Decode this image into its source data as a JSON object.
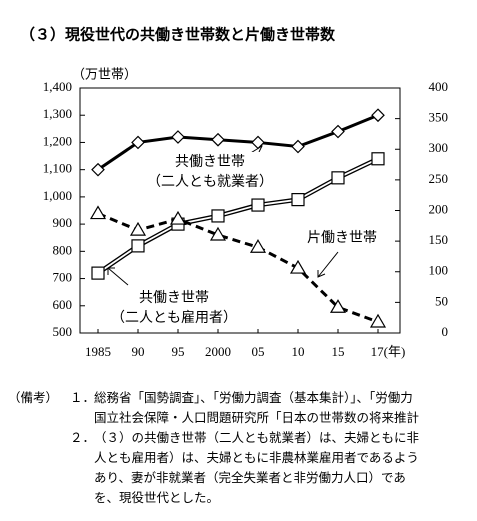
{
  "chart_data": {
    "type": "line",
    "title": "（３）現役世代の共働き世帯数と片働き世帯数",
    "y_label": "（万世帯）",
    "categories": [
      "1985",
      "90",
      "95",
      "2000",
      "05",
      "10",
      "15",
      "17(年)"
    ],
    "series": [
      {
        "name": "共働き世帯\n（二人とも就業者）",
        "color": "#000000",
        "marker": "diamond",
        "line_style": "solid",
        "values": [
          1100,
          1200,
          1220,
          1210,
          1200,
          1185,
          1240,
          1300
        ]
      },
      {
        "name": "共働き世帯\n（二人とも雇用者）",
        "color": "#000000",
        "marker": "square",
        "line_style": "double",
        "values": [
          720,
          820,
          900,
          930,
          970,
          990,
          1070,
          1140
        ]
      },
      {
        "name": "片働き世帯",
        "color": "#000000",
        "marker": "triangle",
        "line_style": "dashed",
        "axis": "y2",
        "values": [
          195,
          168,
          186,
          160,
          140,
          106,
          42,
          18
        ]
      }
    ],
    "ylim": [
      500,
      1400
    ],
    "yticks": [
      500,
      600,
      700,
      800,
      900,
      {
        "value": 1000,
        "label": "1,000"
      },
      {
        "value": 1100,
        "label": "1,100"
      },
      {
        "value": 1200,
        "label": "1,200"
      },
      {
        "value": 1300,
        "label": "1,300"
      },
      {
        "value": 1400,
        "label": "1,400"
      }
    ],
    "y2lim": [
      0,
      400
    ],
    "y2ticks": [
      0,
      50,
      100,
      150,
      200,
      250,
      300,
      350,
      400
    ],
    "grid": false
  },
  "notes": {
    "label": "（備考）",
    "items": [
      {
        "number": "１．",
        "lines": [
          "総務省「国勢調査」、「労働力調査（基本集計）」、「労働力",
          "国立社会保障・人口問題研究所「日本の世帯数の将来推計"
        ]
      },
      {
        "number": "２．",
        "lines": [
          "（３）の共働き世帯（二人とも就業者）は、夫婦ともに非",
          "人とも雇用者）は、夫婦ともに非農林業雇用者であるよう",
          "あり、妻が非就業者（完全失業者と非労働力人口）であ",
          "を、現役世代とした。"
        ]
      }
    ]
  }
}
